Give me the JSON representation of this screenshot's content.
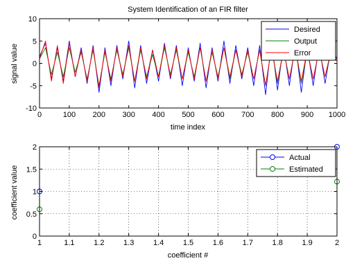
{
  "chart_data": [
    {
      "type": "line",
      "title": "System Identification of an FIR filter",
      "xlabel": "time index",
      "ylabel": "signal value",
      "xlim": [
        0,
        1000
      ],
      "ylim": [
        -10,
        10
      ],
      "xticks": [
        0,
        100,
        200,
        300,
        400,
        500,
        600,
        700,
        800,
        900,
        1000
      ],
      "xtick_labels": [
        "0",
        "100",
        "200",
        "300",
        "400",
        "500",
        "600",
        "700",
        "800",
        "900",
        "1000"
      ],
      "yticks": [
        -10,
        -5,
        0,
        5,
        10
      ],
      "ytick_labels": [
        "-10",
        "-5",
        "0",
        "5",
        "10"
      ],
      "grid": false,
      "legend_position": "top-right",
      "series": [
        {
          "name": "Desired",
          "color": "#0000ff",
          "x": [
            0,
            20,
            40,
            60,
            80,
            100,
            120,
            140,
            160,
            180,
            200,
            220,
            240,
            260,
            280,
            300,
            320,
            340,
            360,
            380,
            400,
            420,
            440,
            460,
            480,
            500,
            520,
            540,
            560,
            580,
            600,
            620,
            640,
            660,
            680,
            700,
            720,
            740,
            760,
            780,
            800,
            820,
            840,
            860,
            880,
            900,
            920,
            940,
            960,
            980,
            1000
          ],
          "y": [
            1.5,
            4.5,
            -3.5,
            3.5,
            -4.0,
            5.0,
            -3.0,
            3.5,
            -4.5,
            4.0,
            -6.5,
            3.5,
            -5.0,
            4.0,
            -3.5,
            5.0,
            -5.5,
            4.0,
            -4.5,
            3.0,
            -4.0,
            4.5,
            -3.5,
            4.0,
            -5.0,
            3.5,
            -4.0,
            4.5,
            -5.5,
            3.5,
            -4.0,
            5.0,
            -4.5,
            4.0,
            -3.5,
            3.5,
            -5.0,
            4.0,
            -7.0,
            5.0,
            -6.0,
            4.0,
            -5.0,
            4.5,
            -6.5,
            3.5,
            -5.0,
            4.0,
            -4.5,
            3.5,
            1.0
          ]
        },
        {
          "name": "Output",
          "color": "#008000",
          "x": [
            0,
            20,
            40,
            60,
            80,
            100,
            120,
            140,
            160,
            180,
            200,
            220,
            240,
            260,
            280,
            300,
            320,
            340,
            360,
            380,
            400,
            420,
            440,
            460,
            480,
            500,
            520,
            540,
            560,
            580,
            600,
            620,
            640,
            660,
            680,
            700,
            720,
            740,
            760,
            780,
            800,
            820,
            840,
            860,
            880,
            900,
            920,
            940,
            960,
            980,
            1000
          ],
          "y": [
            1.0,
            3.5,
            -2.5,
            2.5,
            -3.0,
            3.5,
            -2.0,
            2.5,
            -3.5,
            3.0,
            -5.0,
            2.5,
            -3.5,
            3.0,
            -2.5,
            3.5,
            -4.0,
            3.0,
            -3.0,
            2.0,
            -3.0,
            3.5,
            -2.5,
            3.0,
            -3.5,
            2.5,
            -3.0,
            3.5,
            -4.0,
            2.5,
            -3.0,
            3.5,
            -3.5,
            3.0,
            -2.5,
            2.5,
            -3.5,
            3.0,
            -5.0,
            3.5,
            -4.5,
            3.0,
            -3.5,
            3.5,
            -4.5,
            2.5,
            -3.5,
            3.0,
            -3.0,
            2.5,
            0.5
          ]
        },
        {
          "name": "Error",
          "color": "#ff0000",
          "x": [
            0,
            20,
            40,
            60,
            80,
            100,
            120,
            140,
            160,
            180,
            200,
            220,
            240,
            260,
            280,
            300,
            320,
            340,
            360,
            380,
            400,
            420,
            440,
            460,
            480,
            500,
            520,
            540,
            560,
            580,
            600,
            620,
            640,
            660,
            680,
            700,
            720,
            740,
            760,
            780,
            800,
            820,
            840,
            860,
            880,
            900,
            920,
            940,
            960,
            980,
            1000
          ],
          "y": [
            1.0,
            5.0,
            -4.0,
            4.0,
            -4.5,
            4.5,
            -3.0,
            3.0,
            -4.0,
            3.5,
            -5.5,
            3.0,
            -4.0,
            3.5,
            -3.0,
            4.0,
            -4.0,
            3.5,
            -3.5,
            3.0,
            -3.0,
            4.0,
            -3.0,
            3.5,
            -3.5,
            3.0,
            -3.5,
            3.5,
            -4.0,
            3.0,
            -3.5,
            3.5,
            -3.0,
            3.0,
            -3.0,
            3.0,
            -3.5,
            3.0,
            -5.0,
            3.5,
            -4.0,
            3.0,
            -3.5,
            3.5,
            -4.0,
            3.0,
            -3.5,
            3.0,
            -3.0,
            3.0,
            0.5
          ]
        }
      ]
    },
    {
      "type": "scatter",
      "title": "",
      "xlabel": "coefficient #",
      "ylabel": "coefficient value",
      "xlim": [
        1,
        2
      ],
      "ylim": [
        0,
        2
      ],
      "xticks": [
        1,
        1.1,
        1.2,
        1.3,
        1.4,
        1.5,
        1.6,
        1.7,
        1.8,
        1.9,
        2
      ],
      "xtick_labels": [
        "1",
        "1.1",
        "1.2",
        "1.3",
        "1.4",
        "1.5",
        "1.6",
        "1.7",
        "1.8",
        "1.9",
        "2"
      ],
      "yticks": [
        0,
        0.5,
        1,
        1.5,
        2
      ],
      "ytick_labels": [
        "0",
        "0.5",
        "1",
        "1.5",
        "2"
      ],
      "grid": true,
      "legend_position": "top-right",
      "marker": "circle",
      "series": [
        {
          "name": "Actual",
          "color": "#0000ff",
          "x": [
            1,
            2
          ],
          "y": [
            1.0,
            2.0
          ]
        },
        {
          "name": "Estimated",
          "color": "#008000",
          "x": [
            1,
            2
          ],
          "y": [
            0.6,
            1.22
          ]
        }
      ]
    }
  ]
}
